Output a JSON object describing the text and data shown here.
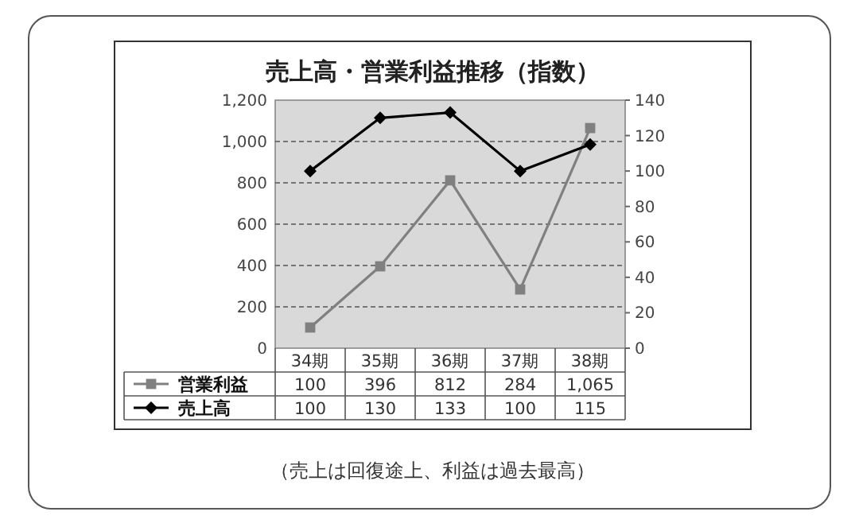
{
  "chart_data": {
    "type": "line",
    "title": "売上高・営業利益推移（指数）",
    "categories": [
      "34期",
      "35期",
      "36期",
      "37期",
      "38期"
    ],
    "series": [
      {
        "name": "営業利益",
        "color": "#808080",
        "marker": "square",
        "values": [
          100,
          396,
          812,
          284,
          1065
        ],
        "value_labels": [
          "100",
          "396",
          "812",
          "284",
          "1,065"
        ]
      },
      {
        "name": "売上高",
        "color": "#000000",
        "marker": "diamond",
        "axis": "y2",
        "values": [
          100,
          130,
          133,
          100,
          115
        ],
        "value_labels": [
          "100",
          "130",
          "133",
          "100",
          "115"
        ]
      }
    ],
    "ylim": [
      0,
      1200
    ],
    "yticks": [
      0,
      {
        "value": 200,
        "label": "200"
      },
      {
        "value": 400,
        "label": "400"
      },
      {
        "value": 600,
        "label": "600"
      },
      {
        "value": 800,
        "label": "800"
      },
      {
        "value": 1000,
        "label": "1,000"
      },
      {
        "value": 1200,
        "label": "1,200"
      }
    ],
    "y2lim": [
      0,
      140
    ],
    "y2ticks": [
      0,
      20,
      40,
      60,
      80,
      100,
      120,
      140
    ],
    "grid": "y",
    "line_style": "solid",
    "legend": "bottom",
    "annotations": [
      "（売上は回復途上、利益は過去最高）"
    ]
  }
}
